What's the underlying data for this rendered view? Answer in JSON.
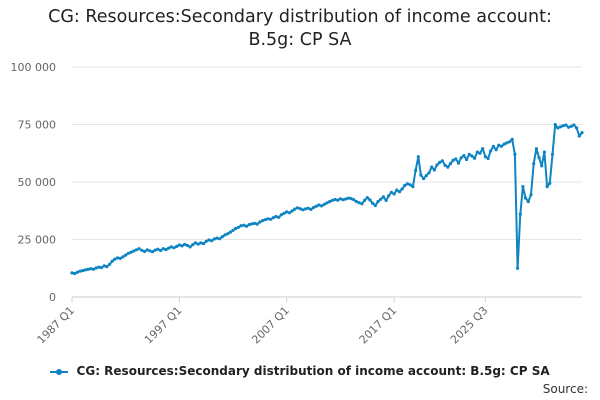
{
  "title_line1": "CG: Resources:Secondary distribution of income account:",
  "title_line2": "B.5g: CP SA",
  "source_label": "Source:",
  "chart_data": {
    "type": "line",
    "title": "CG: Resources:Secondary distribution of income account: B.5g: CP SA",
    "xlabel": "",
    "ylabel": "",
    "ylim": [
      0,
      100000
    ],
    "yticks": [
      0,
      25000,
      50000,
      75000,
      100000
    ],
    "ytick_labels": [
      "0",
      "25 000",
      "50 000",
      "75 000",
      "100 000"
    ],
    "xticks": [
      "1987 Q1",
      "1997 Q1",
      "2007 Q1",
      "2017 Q1",
      "2025 Q3"
    ],
    "x_start": "1987 Q1",
    "x_end": "2025 Q3",
    "grid": true,
    "legend_position": "bottom",
    "color": "#0e84c2",
    "series": [
      {
        "name": "CG: Resources:Secondary distribution of income account: B.5g: CP SA",
        "values": [
          10500,
          10200,
          10800,
          11200,
          11500,
          11800,
          12000,
          12300,
          12100,
          12600,
          13000,
          12800,
          13500,
          13200,
          14200,
          15600,
          16500,
          17000,
          16800,
          17500,
          18200,
          19000,
          19500,
          20000,
          20500,
          21000,
          20300,
          19800,
          20500,
          20100,
          19700,
          20400,
          20800,
          20200,
          21000,
          20600,
          21200,
          21800,
          21400,
          22000,
          22600,
          22200,
          22900,
          22400,
          21800,
          22800,
          23500,
          23000,
          23500,
          23200,
          24200,
          24800,
          24500,
          25200,
          25600,
          25300,
          26200,
          27000,
          27500,
          28200,
          29000,
          29800,
          30300,
          31000,
          31200,
          30800,
          31500,
          31800,
          32000,
          31700,
          32600,
          33200,
          33600,
          34000,
          33800,
          34500,
          35000,
          34600,
          35800,
          36400,
          37000,
          36600,
          37400,
          38200,
          38800,
          38400,
          37900,
          38300,
          38600,
          38100,
          38900,
          39500,
          40000,
          39600,
          40300,
          40900,
          41500,
          42000,
          42400,
          42100,
          42700,
          42300,
          42600,
          43000,
          42800,
          42300,
          41500,
          41000,
          40500,
          42000,
          43200,
          42200,
          40800,
          39800,
          41500,
          42500,
          43500,
          42000,
          44000,
          45500,
          44800,
          46500,
          45800,
          47000,
          48500,
          49200,
          48800,
          48000,
          55000,
          61000,
          53000,
          51500,
          52800,
          54000,
          56500,
          55200,
          57500,
          58500,
          59200,
          57200,
          56500,
          58000,
          59500,
          60000,
          58200,
          60500,
          61500,
          59800,
          62000,
          61300,
          60300,
          63000,
          62500,
          64500,
          61000,
          60200,
          63500,
          65500,
          64000,
          66000,
          65500,
          66500,
          67000,
          67500,
          68500,
          62000,
          12500,
          36000,
          48000,
          43000,
          41500,
          44500,
          58000,
          64500,
          60500,
          57000,
          63000,
          48000,
          49500,
          62000,
          75000,
          73500,
          74000,
          74500,
          74800,
          73800,
          74200,
          74800,
          73500,
          70000,
          71500
        ]
      }
    ]
  }
}
